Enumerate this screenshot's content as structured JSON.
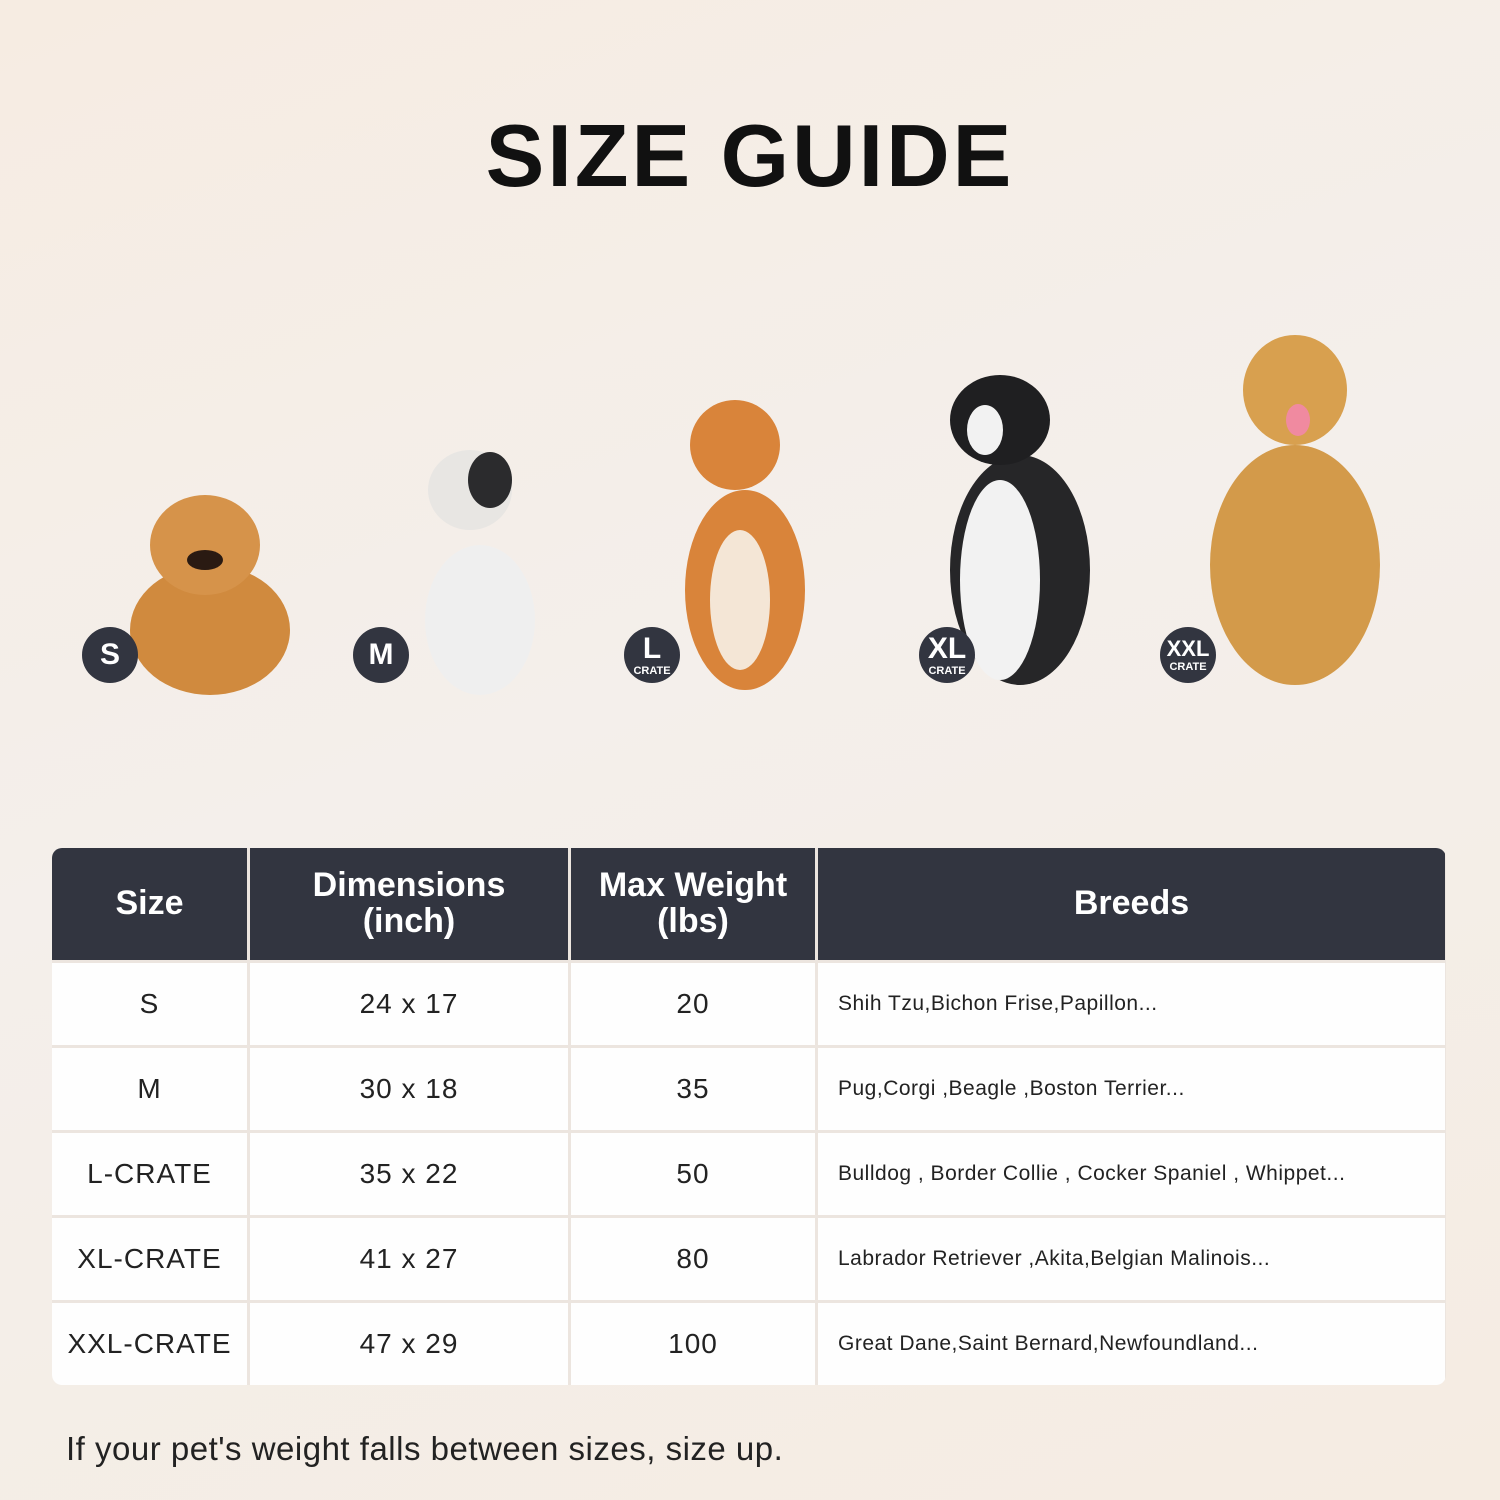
{
  "title": "SIZE GUIDE",
  "badges": [
    {
      "size": "S",
      "sub": ""
    },
    {
      "size": "M",
      "sub": ""
    },
    {
      "size": "L",
      "sub": "CRATE"
    },
    {
      "size": "XL",
      "sub": "CRATE"
    },
    {
      "size": "XXL",
      "sub": "CRATE"
    }
  ],
  "table": {
    "headers": [
      "Size",
      "Dimensions (inch)",
      "Max Weight (lbs)",
      "Breeds"
    ],
    "rows": [
      [
        "S",
        "24 x 17",
        "20",
        "Shih Tzu,Bichon Frise,Papillon..."
      ],
      [
        "M",
        "30 x 18",
        "35",
        "Pug,Corgi ,Beagle ,Boston Terrier..."
      ],
      [
        "L-CRATE",
        "35 x 22",
        "50",
        "Bulldog , Border Collie , Cocker Spaniel , Whippet..."
      ],
      [
        "XL-CRATE",
        "41 x 27",
        "80",
        "Labrador Retriever ,Akita,Belgian Malinois..."
      ],
      [
        "XXL-CRATE",
        "47 x 29",
        "100",
        "Great Dane,Saint Bernard,Newfoundland..."
      ]
    ]
  },
  "footer": "If your pet's weight falls between sizes, size up.",
  "colors": {
    "header_bg": "#323540",
    "badge_bg": "#323540"
  }
}
